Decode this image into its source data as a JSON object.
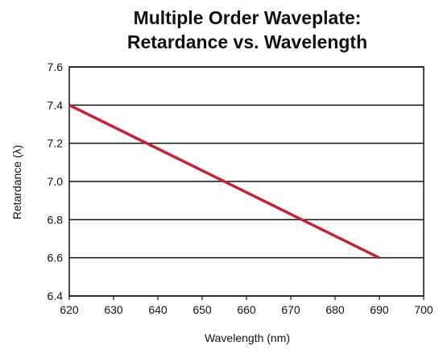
{
  "chart_data": {
    "type": "line",
    "title_lines": [
      "Multiple Order Waveplate:",
      "Retardance vs. Wavelength"
    ],
    "xlabel": "Wavelength (nm)",
    "ylabel": "Retardance (λ)",
    "xlim": [
      620,
      700
    ],
    "ylim": [
      6.4,
      7.6
    ],
    "x_ticks": [
      "620",
      "630",
      "640",
      "650",
      "660",
      "670",
      "680",
      "690",
      "700"
    ],
    "y_ticks": [
      "6.4",
      "6.6",
      "6.8",
      "7.0",
      "7.2",
      "7.4",
      "7.6"
    ],
    "grid": "horizontal",
    "series": [
      {
        "color": "#c0243a",
        "x": [
          620,
          690
        ],
        "y": [
          7.4,
          6.6
        ]
      }
    ]
  }
}
